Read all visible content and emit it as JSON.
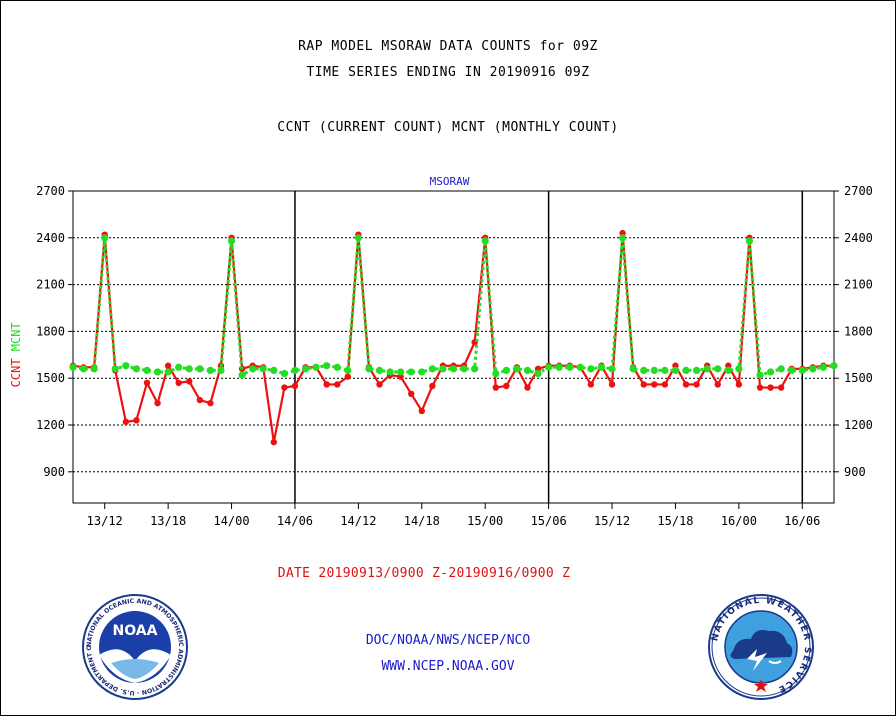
{
  "header": {
    "line1": "RAP MODEL MSORAW DATA COUNTS for 09Z",
    "line2": "TIME SERIES ENDING IN 20190916 09Z",
    "line3": "CCNT (CURRENT COUNT) MCNT (MONTHLY COUNT)"
  },
  "date_range": "DATE 20190913/0900 Z-20190916/0900 Z",
  "footer": {
    "line1": "DOC/NOAA/NWS/NCEP/NCO",
    "line2": "WWW.NCEP.NOAA.GOV"
  },
  "logos": {
    "noaa_text": "NOAA",
    "noaa_ring": "NATIONAL OCEANIC AND ATMOSPHERIC ADMINISTRATION · U.S. DEPARTMENT OF COMMERCE ·",
    "nws_ring": "NATIONAL WEATHER SERVICE"
  },
  "colors": {
    "ccnt": "#ee1111",
    "mcnt": "#22dd22",
    "text_blue": "#1a1acc",
    "text_red": "#e01010"
  },
  "chart_data": {
    "type": "line",
    "title": "MSORAW",
    "ylabel_parts": [
      "CCNT",
      "MCNT"
    ],
    "ylim": [
      700,
      2700
    ],
    "yticks": [
      900,
      1200,
      1500,
      1800,
      2100,
      2400,
      2700
    ],
    "xlim": [
      0,
      72
    ],
    "xtick_positions": [
      3,
      9,
      15,
      21,
      27,
      33,
      39,
      45,
      51,
      57,
      63,
      69
    ],
    "xtick_labels": [
      "13/12",
      "13/18",
      "14/00",
      "14/06",
      "14/12",
      "14/18",
      "15/00",
      "15/06",
      "15/12",
      "15/18",
      "16/00",
      "16/06"
    ],
    "day_boundaries": [
      21,
      45,
      69
    ],
    "grid": true,
    "series": [
      {
        "name": "CCNT",
        "x": [
          0,
          1,
          2,
          3,
          4,
          5,
          6,
          7,
          8,
          9,
          10,
          11,
          12,
          13,
          14,
          15,
          16,
          17,
          18,
          19,
          20,
          21,
          22,
          23,
          24,
          25,
          26,
          27,
          28,
          29,
          30,
          31,
          32,
          33,
          34,
          35,
          36,
          37,
          38,
          39,
          40,
          41,
          42,
          43,
          44,
          45,
          46,
          47,
          48,
          49,
          50,
          51,
          52,
          53,
          54,
          55,
          56,
          57,
          58,
          59,
          60,
          61,
          62,
          63,
          64,
          65,
          66,
          67,
          68,
          69,
          70,
          71,
          72
        ],
        "values": [
          1580,
          1570,
          1570,
          2420,
          1550,
          1220,
          1230,
          1470,
          1340,
          1580,
          1470,
          1480,
          1360,
          1340,
          1580,
          2400,
          1560,
          1580,
          1570,
          1090,
          1440,
          1450,
          1570,
          1570,
          1460,
          1460,
          1510,
          2420,
          1570,
          1460,
          1520,
          1510,
          1400,
          1290,
          1450,
          1580,
          1580,
          1580,
          1730,
          2400,
          1440,
          1450,
          1570,
          1440,
          1560,
          1580,
          1580,
          1580,
          1570,
          1460,
          1580,
          1460,
          2430,
          1570,
          1460,
          1460,
          1460,
          1580,
          1460,
          1460,
          1580,
          1460,
          1580,
          1460,
          2400,
          1440,
          1440,
          1440,
          1560,
          1560,
          1570,
          1580,
          1580
        ]
      },
      {
        "name": "MCNT",
        "x": [
          0,
          1,
          2,
          3,
          4,
          5,
          6,
          7,
          8,
          9,
          10,
          11,
          12,
          13,
          14,
          15,
          16,
          17,
          18,
          19,
          20,
          21,
          22,
          23,
          24,
          25,
          26,
          27,
          28,
          29,
          30,
          31,
          32,
          33,
          34,
          35,
          36,
          37,
          38,
          39,
          40,
          41,
          42,
          43,
          44,
          45,
          46,
          47,
          48,
          49,
          50,
          51,
          52,
          53,
          54,
          55,
          56,
          57,
          58,
          59,
          60,
          61,
          62,
          63,
          64,
          65,
          66,
          67,
          68,
          69,
          70,
          71,
          72
        ],
        "values": [
          1570,
          1560,
          1560,
          2400,
          1560,
          1580,
          1560,
          1550,
          1540,
          1540,
          1570,
          1560,
          1560,
          1550,
          1550,
          2380,
          1520,
          1560,
          1560,
          1550,
          1530,
          1550,
          1560,
          1570,
          1580,
          1570,
          1550,
          2400,
          1560,
          1550,
          1540,
          1540,
          1540,
          1540,
          1560,
          1560,
          1560,
          1560,
          1560,
          2380,
          1530,
          1550,
          1560,
          1550,
          1530,
          1570,
          1570,
          1570,
          1570,
          1560,
          1570,
          1560,
          2400,
          1560,
          1550,
          1550,
          1550,
          1550,
          1550,
          1550,
          1560,
          1560,
          1550,
          1560,
          2380,
          1520,
          1540,
          1560,
          1550,
          1550,
          1560,
          1570,
          1580
        ]
      }
    ]
  }
}
